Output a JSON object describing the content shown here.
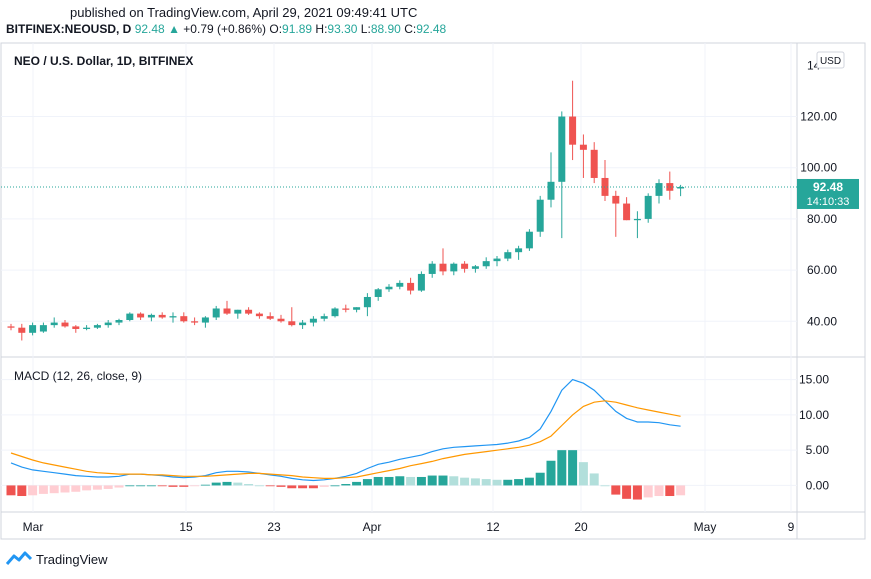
{
  "header": {
    "published": "published on TradingView.com, April 29, 2021 09:49:41 UTC",
    "symbol": "BITFINEX:NEOUSD, D",
    "last": "92.48",
    "arrow": "▲",
    "change": "+0.79 (+0.86%)",
    "o_label": "O:",
    "o": "91.89",
    "h_label": "H:",
    "h": "93.30",
    "l_label": "L:",
    "l": "88.90",
    "c_label": "C:",
    "c": "92.48"
  },
  "footer": {
    "brand": "TradingView",
    "logo_icon": "tradingview-logo-icon"
  },
  "colors": {
    "up": "#26a69a",
    "down": "#ef5350",
    "macd": "#2196f3",
    "signal": "#ff9800",
    "hist_up_strong": "#26a69a",
    "hist_up_weak": "#b2dfdb",
    "hist_down_strong": "#ef5350",
    "hist_down_weak": "#ffcdd2"
  },
  "chart_data": [
    {
      "type": "candlestick",
      "title": "NEO / U.S. Dollar, 1D, BITFINEX",
      "currency_label": "USD",
      "last_price_label": "92.48",
      "countdown_label": "14:10:33",
      "y_ticks": [
        "40.00",
        "60.00",
        "80.00",
        "100.00",
        "120.00"
      ],
      "y_top_tick": "14",
      "ylim": [
        28,
        146
      ],
      "grid": true,
      "x_ticks": [
        "Mar",
        "15",
        "23",
        "Apr",
        "12",
        "20",
        "May",
        "9"
      ],
      "candles": [
        {
          "o": 38.0,
          "h": 39.0,
          "l": 36.5,
          "c": 37.5
        },
        {
          "o": 37.5,
          "h": 39.0,
          "l": 32.5,
          "c": 35.5
        },
        {
          "o": 35.5,
          "h": 39.5,
          "l": 34.5,
          "c": 38.5
        },
        {
          "o": 36.0,
          "h": 39.5,
          "l": 35.5,
          "c": 38.5
        },
        {
          "o": 38.5,
          "h": 41.5,
          "l": 37.5,
          "c": 39.5
        },
        {
          "o": 39.5,
          "h": 40.5,
          "l": 37.5,
          "c": 38.0
        },
        {
          "o": 38.0,
          "h": 38.5,
          "l": 35.5,
          "c": 37.0
        },
        {
          "o": 37.0,
          "h": 38.5,
          "l": 36.5,
          "c": 37.5
        },
        {
          "o": 37.5,
          "h": 39.0,
          "l": 37.0,
          "c": 38.5
        },
        {
          "o": 38.5,
          "h": 40.5,
          "l": 37.5,
          "c": 39.5
        },
        {
          "o": 39.5,
          "h": 41.0,
          "l": 38.5,
          "c": 40.5
        },
        {
          "o": 40.5,
          "h": 43.5,
          "l": 40.0,
          "c": 43.0
        },
        {
          "o": 43.0,
          "h": 43.5,
          "l": 40.5,
          "c": 41.5
        },
        {
          "o": 41.5,
          "h": 43.0,
          "l": 40.0,
          "c": 42.5
        },
        {
          "o": 42.5,
          "h": 43.5,
          "l": 41.0,
          "c": 41.5
        },
        {
          "o": 41.5,
          "h": 43.5,
          "l": 39.5,
          "c": 42.0
        },
        {
          "o": 42.0,
          "h": 43.5,
          "l": 39.5,
          "c": 40.0
        },
        {
          "o": 40.0,
          "h": 41.5,
          "l": 38.5,
          "c": 39.5
        },
        {
          "o": 39.5,
          "h": 42.0,
          "l": 37.5,
          "c": 41.5
        },
        {
          "o": 41.5,
          "h": 46.0,
          "l": 40.5,
          "c": 45.0
        },
        {
          "o": 45.0,
          "h": 48.0,
          "l": 42.5,
          "c": 43.0
        },
        {
          "o": 43.0,
          "h": 44.5,
          "l": 41.0,
          "c": 44.5
        },
        {
          "o": 44.5,
          "h": 45.5,
          "l": 42.5,
          "c": 43.0
        },
        {
          "o": 43.0,
          "h": 43.5,
          "l": 41.0,
          "c": 42.0
        },
        {
          "o": 42.0,
          "h": 43.5,
          "l": 40.5,
          "c": 41.0
        },
        {
          "o": 41.0,
          "h": 42.5,
          "l": 39.5,
          "c": 40.0
        },
        {
          "o": 40.0,
          "h": 45.5,
          "l": 38.0,
          "c": 38.5
        },
        {
          "o": 38.5,
          "h": 40.5,
          "l": 37.0,
          "c": 39.5
        },
        {
          "o": 39.5,
          "h": 42.0,
          "l": 38.0,
          "c": 41.0
        },
        {
          "o": 41.0,
          "h": 43.0,
          "l": 40.0,
          "c": 42.0
        },
        {
          "o": 42.0,
          "h": 45.5,
          "l": 41.5,
          "c": 45.0
        },
        {
          "o": 45.0,
          "h": 46.5,
          "l": 43.5,
          "c": 44.5
        },
        {
          "o": 44.5,
          "h": 45.5,
          "l": 43.5,
          "c": 45.5
        },
        {
          "o": 45.5,
          "h": 51.0,
          "l": 42.0,
          "c": 49.5
        },
        {
          "o": 49.5,
          "h": 53.0,
          "l": 48.0,
          "c": 52.5
        },
        {
          "o": 52.5,
          "h": 54.5,
          "l": 51.5,
          "c": 53.5
        },
        {
          "o": 53.5,
          "h": 56.0,
          "l": 52.5,
          "c": 55.0
        },
        {
          "o": 55.0,
          "h": 57.0,
          "l": 50.5,
          "c": 52.0
        },
        {
          "o": 52.0,
          "h": 59.5,
          "l": 51.5,
          "c": 58.5
        },
        {
          "o": 58.5,
          "h": 63.5,
          "l": 57.0,
          "c": 62.5
        },
        {
          "o": 62.5,
          "h": 68.5,
          "l": 58.0,
          "c": 59.5
        },
        {
          "o": 59.5,
          "h": 63.0,
          "l": 58.0,
          "c": 62.5
        },
        {
          "o": 62.5,
          "h": 63.5,
          "l": 59.0,
          "c": 60.5
        },
        {
          "o": 60.5,
          "h": 62.0,
          "l": 59.0,
          "c": 61.5
        },
        {
          "o": 61.5,
          "h": 65.0,
          "l": 60.5,
          "c": 63.5
        },
        {
          "o": 63.5,
          "h": 65.5,
          "l": 61.5,
          "c": 64.5
        },
        {
          "o": 64.5,
          "h": 68.0,
          "l": 63.5,
          "c": 67.0
        },
        {
          "o": 67.0,
          "h": 69.5,
          "l": 64.0,
          "c": 68.5
        },
        {
          "o": 68.5,
          "h": 76.0,
          "l": 67.5,
          "c": 75.0
        },
        {
          "o": 75.0,
          "h": 89.0,
          "l": 73.0,
          "c": 87.5
        },
        {
          "o": 87.5,
          "h": 106.0,
          "l": 84.5,
          "c": 94.5
        },
        {
          "o": 94.5,
          "h": 122.0,
          "l": 72.5,
          "c": 120.0
        },
        {
          "o": 120.0,
          "h": 134.0,
          "l": 103.0,
          "c": 109.0
        },
        {
          "o": 109.0,
          "h": 113.0,
          "l": 96.0,
          "c": 107.0
        },
        {
          "o": 107.0,
          "h": 110.0,
          "l": 94.0,
          "c": 96.0
        },
        {
          "o": 96.0,
          "h": 103.0,
          "l": 87.0,
          "c": 89.0
        },
        {
          "o": 89.0,
          "h": 91.0,
          "l": 73.0,
          "c": 86.0
        },
        {
          "o": 86.0,
          "h": 88.5,
          "l": 79.5,
          "c": 79.5
        },
        {
          "o": 79.5,
          "h": 83.0,
          "l": 72.5,
          "c": 80.0
        },
        {
          "o": 80.0,
          "h": 90.0,
          "l": 78.5,
          "c": 89.0
        },
        {
          "o": 89.0,
          "h": 95.5,
          "l": 86.0,
          "c": 94.0
        },
        {
          "o": 94.0,
          "h": 98.5,
          "l": 87.5,
          "c": 91.0
        },
        {
          "o": 91.89,
          "h": 93.3,
          "l": 88.9,
          "c": 92.48
        }
      ]
    },
    {
      "type": "line",
      "title": "MACD (12, 26, close, 9)",
      "y_ticks": [
        "0.00",
        "5.00",
        "10.00",
        "15.00"
      ],
      "ylim": [
        -3.2,
        17.5
      ],
      "grid": true,
      "series": [
        {
          "role": "macd",
          "values": [
            3.2,
            2.6,
            2.2,
            2.0,
            1.8,
            1.6,
            1.4,
            1.3,
            1.2,
            1.2,
            1.3,
            1.6,
            1.6,
            1.5,
            1.4,
            1.2,
            1.1,
            1.2,
            1.4,
            1.8,
            2.0,
            2.0,
            1.9,
            1.7,
            1.5,
            1.3,
            1.0,
            0.8,
            0.7,
            0.8,
            1.0,
            1.3,
            1.7,
            2.4,
            3.0,
            3.3,
            3.7,
            4.0,
            4.3,
            4.8,
            5.2,
            5.4,
            5.5,
            5.6,
            5.7,
            5.8,
            6.0,
            6.3,
            6.8,
            8.0,
            10.5,
            13.5,
            15.0,
            14.5,
            13.5,
            12.0,
            10.5,
            9.5,
            9.0,
            9.0,
            8.9,
            8.6,
            8.4
          ]
        },
        {
          "role": "signal",
          "values": [
            4.6,
            4.1,
            3.6,
            3.2,
            2.9,
            2.6,
            2.3,
            2.0,
            1.8,
            1.7,
            1.6,
            1.6,
            1.6,
            1.5,
            1.5,
            1.4,
            1.3,
            1.3,
            1.3,
            1.4,
            1.5,
            1.6,
            1.7,
            1.7,
            1.6,
            1.5,
            1.4,
            1.2,
            1.1,
            1.0,
            1.0,
            1.1,
            1.2,
            1.5,
            1.8,
            2.1,
            2.4,
            2.8,
            3.1,
            3.4,
            3.8,
            4.1,
            4.4,
            4.6,
            4.8,
            5.0,
            5.2,
            5.4,
            5.7,
            6.2,
            7.0,
            8.5,
            10.0,
            11.2,
            11.8,
            12.0,
            11.8,
            11.4,
            11.0,
            10.7,
            10.4,
            10.1,
            9.8
          ]
        }
      ],
      "histogram": [
        -1.4,
        -1.5,
        -1.4,
        -1.2,
        -1.1,
        -1.0,
        -0.9,
        -0.7,
        -0.6,
        -0.5,
        -0.3,
        0.0,
        0.0,
        0.0,
        -0.1,
        -0.2,
        -0.2,
        -0.1,
        0.1,
        0.4,
        0.5,
        0.4,
        0.2,
        0.0,
        -0.1,
        -0.2,
        -0.4,
        -0.4,
        -0.4,
        -0.2,
        0.0,
        0.2,
        0.5,
        0.9,
        1.2,
        1.2,
        1.3,
        1.2,
        1.2,
        1.4,
        1.4,
        1.3,
        1.1,
        1.0,
        0.9,
        0.8,
        0.8,
        0.9,
        1.1,
        1.8,
        3.5,
        5.0,
        5.0,
        3.3,
        1.7,
        0.0,
        -1.3,
        -1.9,
        -2.0,
        -1.7,
        -1.5,
        -1.5,
        -1.4
      ],
      "x_ticks": [
        "Mar",
        "15",
        "23",
        "Apr",
        "12",
        "20",
        "May",
        "9"
      ]
    }
  ]
}
